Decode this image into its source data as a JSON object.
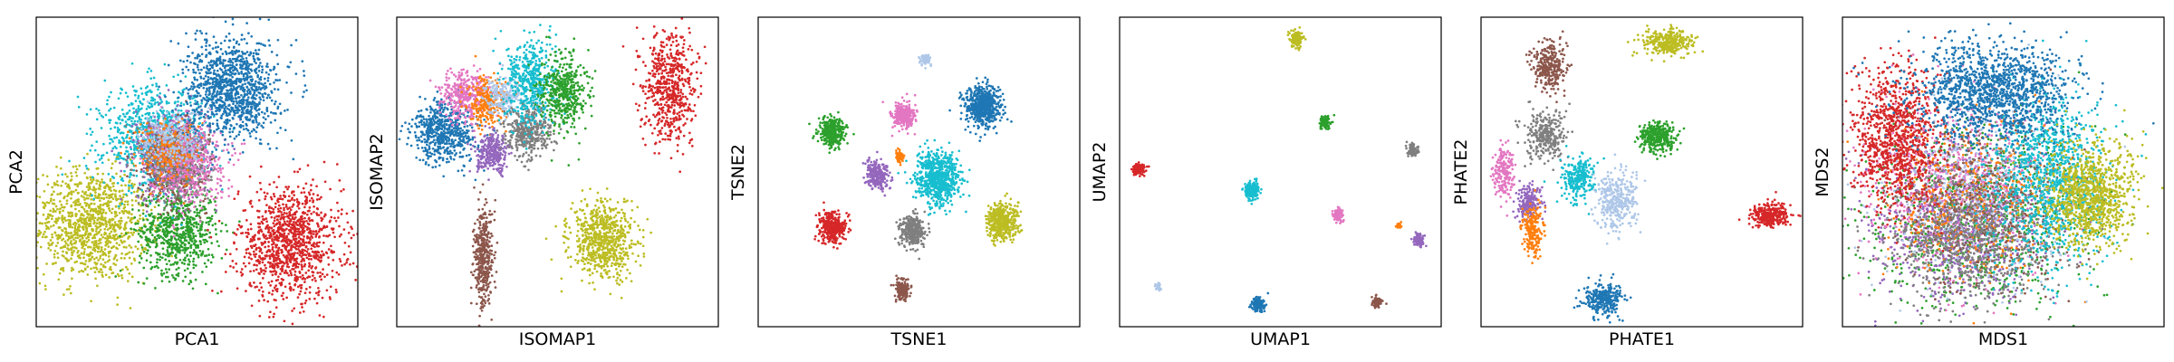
{
  "palette": {
    "blue": "#1f77b4",
    "orange": "#ff7f0e",
    "green": "#2ca02c",
    "red": "#d62728",
    "purple": "#9467bd",
    "brown": "#8c564b",
    "pink": "#e377c2",
    "gray": "#7f7f7f",
    "olive": "#bcbd22",
    "cyan": "#17becf",
    "lightblue": "#aec7e8"
  },
  "chart_data": [
    {
      "type": "scatter",
      "xlabel": "PCA1",
      "ylabel": "PCA2",
      "xlim": [
        0,
        1
      ],
      "ylim": [
        0,
        1
      ],
      "ticks": false,
      "grid": false,
      "clusters": [
        {
          "color": "olive",
          "cx": 0.17,
          "cy": 0.33,
          "sx": 0.09,
          "sy": 0.09,
          "n": 1100
        },
        {
          "color": "green",
          "cx": 0.44,
          "cy": 0.31,
          "sx": 0.06,
          "sy": 0.07,
          "n": 700
        },
        {
          "color": "red",
          "cx": 0.79,
          "cy": 0.27,
          "sx": 0.08,
          "sy": 0.09,
          "n": 1100
        },
        {
          "color": "cyan",
          "cx": 0.37,
          "cy": 0.61,
          "sx": 0.08,
          "sy": 0.08,
          "n": 900
        },
        {
          "color": "purple",
          "cx": 0.42,
          "cy": 0.55,
          "sx": 0.06,
          "sy": 0.07,
          "n": 450
        },
        {
          "color": "brown",
          "cx": 0.43,
          "cy": 0.53,
          "sx": 0.05,
          "sy": 0.06,
          "n": 400
        },
        {
          "color": "gray",
          "cx": 0.44,
          "cy": 0.52,
          "sx": 0.05,
          "sy": 0.06,
          "n": 400
        },
        {
          "color": "pink",
          "cx": 0.47,
          "cy": 0.54,
          "sx": 0.06,
          "sy": 0.07,
          "n": 450
        },
        {
          "color": "orange",
          "cx": 0.41,
          "cy": 0.57,
          "sx": 0.05,
          "sy": 0.05,
          "n": 250
        },
        {
          "color": "lightblue",
          "cx": 0.42,
          "cy": 0.6,
          "sx": 0.05,
          "sy": 0.05,
          "n": 250
        },
        {
          "color": "blue",
          "cx": 0.61,
          "cy": 0.77,
          "sx": 0.07,
          "sy": 0.08,
          "n": 1100
        }
      ]
    },
    {
      "type": "scatter",
      "xlabel": "ISOMAP1",
      "ylabel": "ISOMAP2",
      "xlim": [
        0,
        1
      ],
      "ylim": [
        0,
        1
      ],
      "ticks": false,
      "grid": false,
      "clusters": [
        {
          "color": "blue",
          "cx": 0.15,
          "cy": 0.63,
          "sx": 0.05,
          "sy": 0.05,
          "n": 600
        },
        {
          "color": "pink",
          "cx": 0.21,
          "cy": 0.75,
          "sx": 0.04,
          "sy": 0.04,
          "n": 350
        },
        {
          "color": "orange",
          "cx": 0.28,
          "cy": 0.72,
          "sx": 0.03,
          "sy": 0.04,
          "n": 250
        },
        {
          "color": "purple",
          "cx": 0.3,
          "cy": 0.56,
          "sx": 0.025,
          "sy": 0.03,
          "n": 300
        },
        {
          "color": "lightblue",
          "cx": 0.33,
          "cy": 0.75,
          "sx": 0.03,
          "sy": 0.03,
          "n": 200
        },
        {
          "color": "gray",
          "cx": 0.41,
          "cy": 0.63,
          "sx": 0.035,
          "sy": 0.04,
          "n": 400
        },
        {
          "color": "cyan",
          "cx": 0.42,
          "cy": 0.79,
          "sx": 0.04,
          "sy": 0.07,
          "n": 500
        },
        {
          "color": "green",
          "cx": 0.52,
          "cy": 0.76,
          "sx": 0.035,
          "sy": 0.06,
          "n": 450
        },
        {
          "color": "brown",
          "cx": 0.27,
          "cy": 0.22,
          "sx": 0.015,
          "sy": 0.08,
          "n": 400
        },
        {
          "color": "olive",
          "cx": 0.64,
          "cy": 0.28,
          "sx": 0.05,
          "sy": 0.06,
          "n": 700
        },
        {
          "color": "red",
          "cx": 0.85,
          "cy": 0.78,
          "sx": 0.04,
          "sy": 0.09,
          "n": 600
        }
      ]
    },
    {
      "type": "scatter",
      "xlabel": "TSNE1",
      "ylabel": "TSNE2",
      "xlim": [
        0,
        1
      ],
      "ylim": [
        0,
        1
      ],
      "ticks": false,
      "grid": false,
      "clusters": [
        {
          "color": "lightblue",
          "cx": 0.52,
          "cy": 0.86,
          "sx": 0.008,
          "sy": 0.01,
          "n": 60
        },
        {
          "color": "pink",
          "cx": 0.45,
          "cy": 0.68,
          "sx": 0.018,
          "sy": 0.022,
          "n": 300
        },
        {
          "color": "blue",
          "cx": 0.7,
          "cy": 0.71,
          "sx": 0.028,
          "sy": 0.032,
          "n": 600
        },
        {
          "color": "green",
          "cx": 0.23,
          "cy": 0.63,
          "sx": 0.02,
          "sy": 0.025,
          "n": 350
        },
        {
          "color": "orange",
          "cx": 0.44,
          "cy": 0.55,
          "sx": 0.008,
          "sy": 0.01,
          "n": 50
        },
        {
          "color": "purple",
          "cx": 0.37,
          "cy": 0.49,
          "sx": 0.018,
          "sy": 0.022,
          "n": 250
        },
        {
          "color": "cyan",
          "cx": 0.56,
          "cy": 0.48,
          "sx": 0.035,
          "sy": 0.04,
          "n": 700
        },
        {
          "color": "red",
          "cx": 0.23,
          "cy": 0.32,
          "sx": 0.02,
          "sy": 0.025,
          "n": 350
        },
        {
          "color": "gray",
          "cx": 0.48,
          "cy": 0.31,
          "sx": 0.02,
          "sy": 0.025,
          "n": 300
        },
        {
          "color": "olive",
          "cx": 0.76,
          "cy": 0.34,
          "sx": 0.024,
          "sy": 0.03,
          "n": 450
        },
        {
          "color": "brown",
          "cx": 0.45,
          "cy": 0.12,
          "sx": 0.012,
          "sy": 0.016,
          "n": 150
        }
      ]
    },
    {
      "type": "scatter",
      "xlabel": "UMAP1",
      "ylabel": "UMAP2",
      "xlim": [
        0,
        1
      ],
      "ylim": [
        0,
        1
      ],
      "ticks": false,
      "grid": false,
      "clusters": [
        {
          "color": "olive",
          "cx": 0.55,
          "cy": 0.93,
          "sx": 0.01,
          "sy": 0.012,
          "n": 150
        },
        {
          "color": "green",
          "cx": 0.64,
          "cy": 0.66,
          "sx": 0.008,
          "sy": 0.01,
          "n": 100
        },
        {
          "color": "gray",
          "cx": 0.91,
          "cy": 0.57,
          "sx": 0.008,
          "sy": 0.01,
          "n": 100
        },
        {
          "color": "red",
          "cx": 0.06,
          "cy": 0.51,
          "sx": 0.009,
          "sy": 0.009,
          "n": 120
        },
        {
          "color": "cyan",
          "cx": 0.41,
          "cy": 0.44,
          "sx": 0.012,
          "sy": 0.015,
          "n": 200
        },
        {
          "color": "pink",
          "cx": 0.68,
          "cy": 0.36,
          "sx": 0.008,
          "sy": 0.01,
          "n": 100
        },
        {
          "color": "orange",
          "cx": 0.87,
          "cy": 0.33,
          "sx": 0.004,
          "sy": 0.005,
          "n": 25
        },
        {
          "color": "purple",
          "cx": 0.93,
          "cy": 0.28,
          "sx": 0.008,
          "sy": 0.01,
          "n": 100
        },
        {
          "color": "lightblue",
          "cx": 0.12,
          "cy": 0.13,
          "sx": 0.004,
          "sy": 0.006,
          "n": 30
        },
        {
          "color": "blue",
          "cx": 0.43,
          "cy": 0.07,
          "sx": 0.01,
          "sy": 0.012,
          "n": 150
        },
        {
          "color": "brown",
          "cx": 0.8,
          "cy": 0.08,
          "sx": 0.007,
          "sy": 0.009,
          "n": 80
        }
      ]
    },
    {
      "type": "scatter",
      "xlabel": "PHATE1",
      "ylabel": "PHATE2",
      "xlim": [
        0,
        1
      ],
      "ylim": [
        0,
        1
      ],
      "ticks": false,
      "grid": false,
      "clusters": [
        {
          "color": "olive",
          "cx": 0.58,
          "cy": 0.92,
          "sx": 0.04,
          "sy": 0.02,
          "n": 350
        },
        {
          "color": "brown",
          "cx": 0.21,
          "cy": 0.84,
          "sx": 0.025,
          "sy": 0.04,
          "n": 300
        },
        {
          "color": "gray",
          "cx": 0.2,
          "cy": 0.62,
          "sx": 0.03,
          "sy": 0.04,
          "n": 300
        },
        {
          "color": "green",
          "cx": 0.55,
          "cy": 0.61,
          "sx": 0.03,
          "sy": 0.025,
          "n": 350
        },
        {
          "color": "pink",
          "cx": 0.07,
          "cy": 0.5,
          "sx": 0.015,
          "sy": 0.04,
          "n": 200
        },
        {
          "color": "cyan",
          "cx": 0.3,
          "cy": 0.48,
          "sx": 0.025,
          "sy": 0.035,
          "n": 250
        },
        {
          "color": "lightblue",
          "cx": 0.42,
          "cy": 0.4,
          "sx": 0.03,
          "sy": 0.05,
          "n": 350
        },
        {
          "color": "purple",
          "cx": 0.15,
          "cy": 0.4,
          "sx": 0.02,
          "sy": 0.03,
          "n": 200
        },
        {
          "color": "orange",
          "cx": 0.16,
          "cy": 0.31,
          "sx": 0.015,
          "sy": 0.04,
          "n": 200
        },
        {
          "color": "red",
          "cx": 0.9,
          "cy": 0.36,
          "sx": 0.03,
          "sy": 0.02,
          "n": 300
        },
        {
          "color": "blue",
          "cx": 0.38,
          "cy": 0.09,
          "sx": 0.03,
          "sy": 0.025,
          "n": 300
        }
      ]
    },
    {
      "type": "scatter",
      "xlabel": "MDS1",
      "ylabel": "MDS2",
      "xlim": [
        0,
        1
      ],
      "ylim": [
        0,
        1
      ],
      "ticks": false,
      "grid": false,
      "clusters": [
        {
          "color": "green",
          "cx": 0.4,
          "cy": 0.35,
          "sx": 0.17,
          "sy": 0.14,
          "n": 900
        },
        {
          "color": "pink",
          "cx": 0.35,
          "cy": 0.45,
          "sx": 0.14,
          "sy": 0.13,
          "n": 800
        },
        {
          "color": "purple",
          "cx": 0.36,
          "cy": 0.32,
          "sx": 0.13,
          "sy": 0.12,
          "n": 700
        },
        {
          "color": "orange",
          "cx": 0.4,
          "cy": 0.4,
          "sx": 0.13,
          "sy": 0.13,
          "n": 500
        },
        {
          "color": "lightblue",
          "cx": 0.42,
          "cy": 0.42,
          "sx": 0.14,
          "sy": 0.14,
          "n": 500
        },
        {
          "color": "brown",
          "cx": 0.45,
          "cy": 0.38,
          "sx": 0.14,
          "sy": 0.14,
          "n": 500
        },
        {
          "color": "gray",
          "cx": 0.4,
          "cy": 0.28,
          "sx": 0.12,
          "sy": 0.11,
          "n": 700
        },
        {
          "color": "red",
          "cx": 0.17,
          "cy": 0.6,
          "sx": 0.07,
          "sy": 0.11,
          "n": 1000
        },
        {
          "color": "cyan",
          "cx": 0.65,
          "cy": 0.48,
          "sx": 0.09,
          "sy": 0.14,
          "n": 1100
        },
        {
          "color": "blue",
          "cx": 0.47,
          "cy": 0.76,
          "sx": 0.12,
          "sy": 0.08,
          "n": 1400
        },
        {
          "color": "olive",
          "cx": 0.77,
          "cy": 0.42,
          "sx": 0.07,
          "sy": 0.08,
          "n": 1000
        }
      ]
    }
  ]
}
